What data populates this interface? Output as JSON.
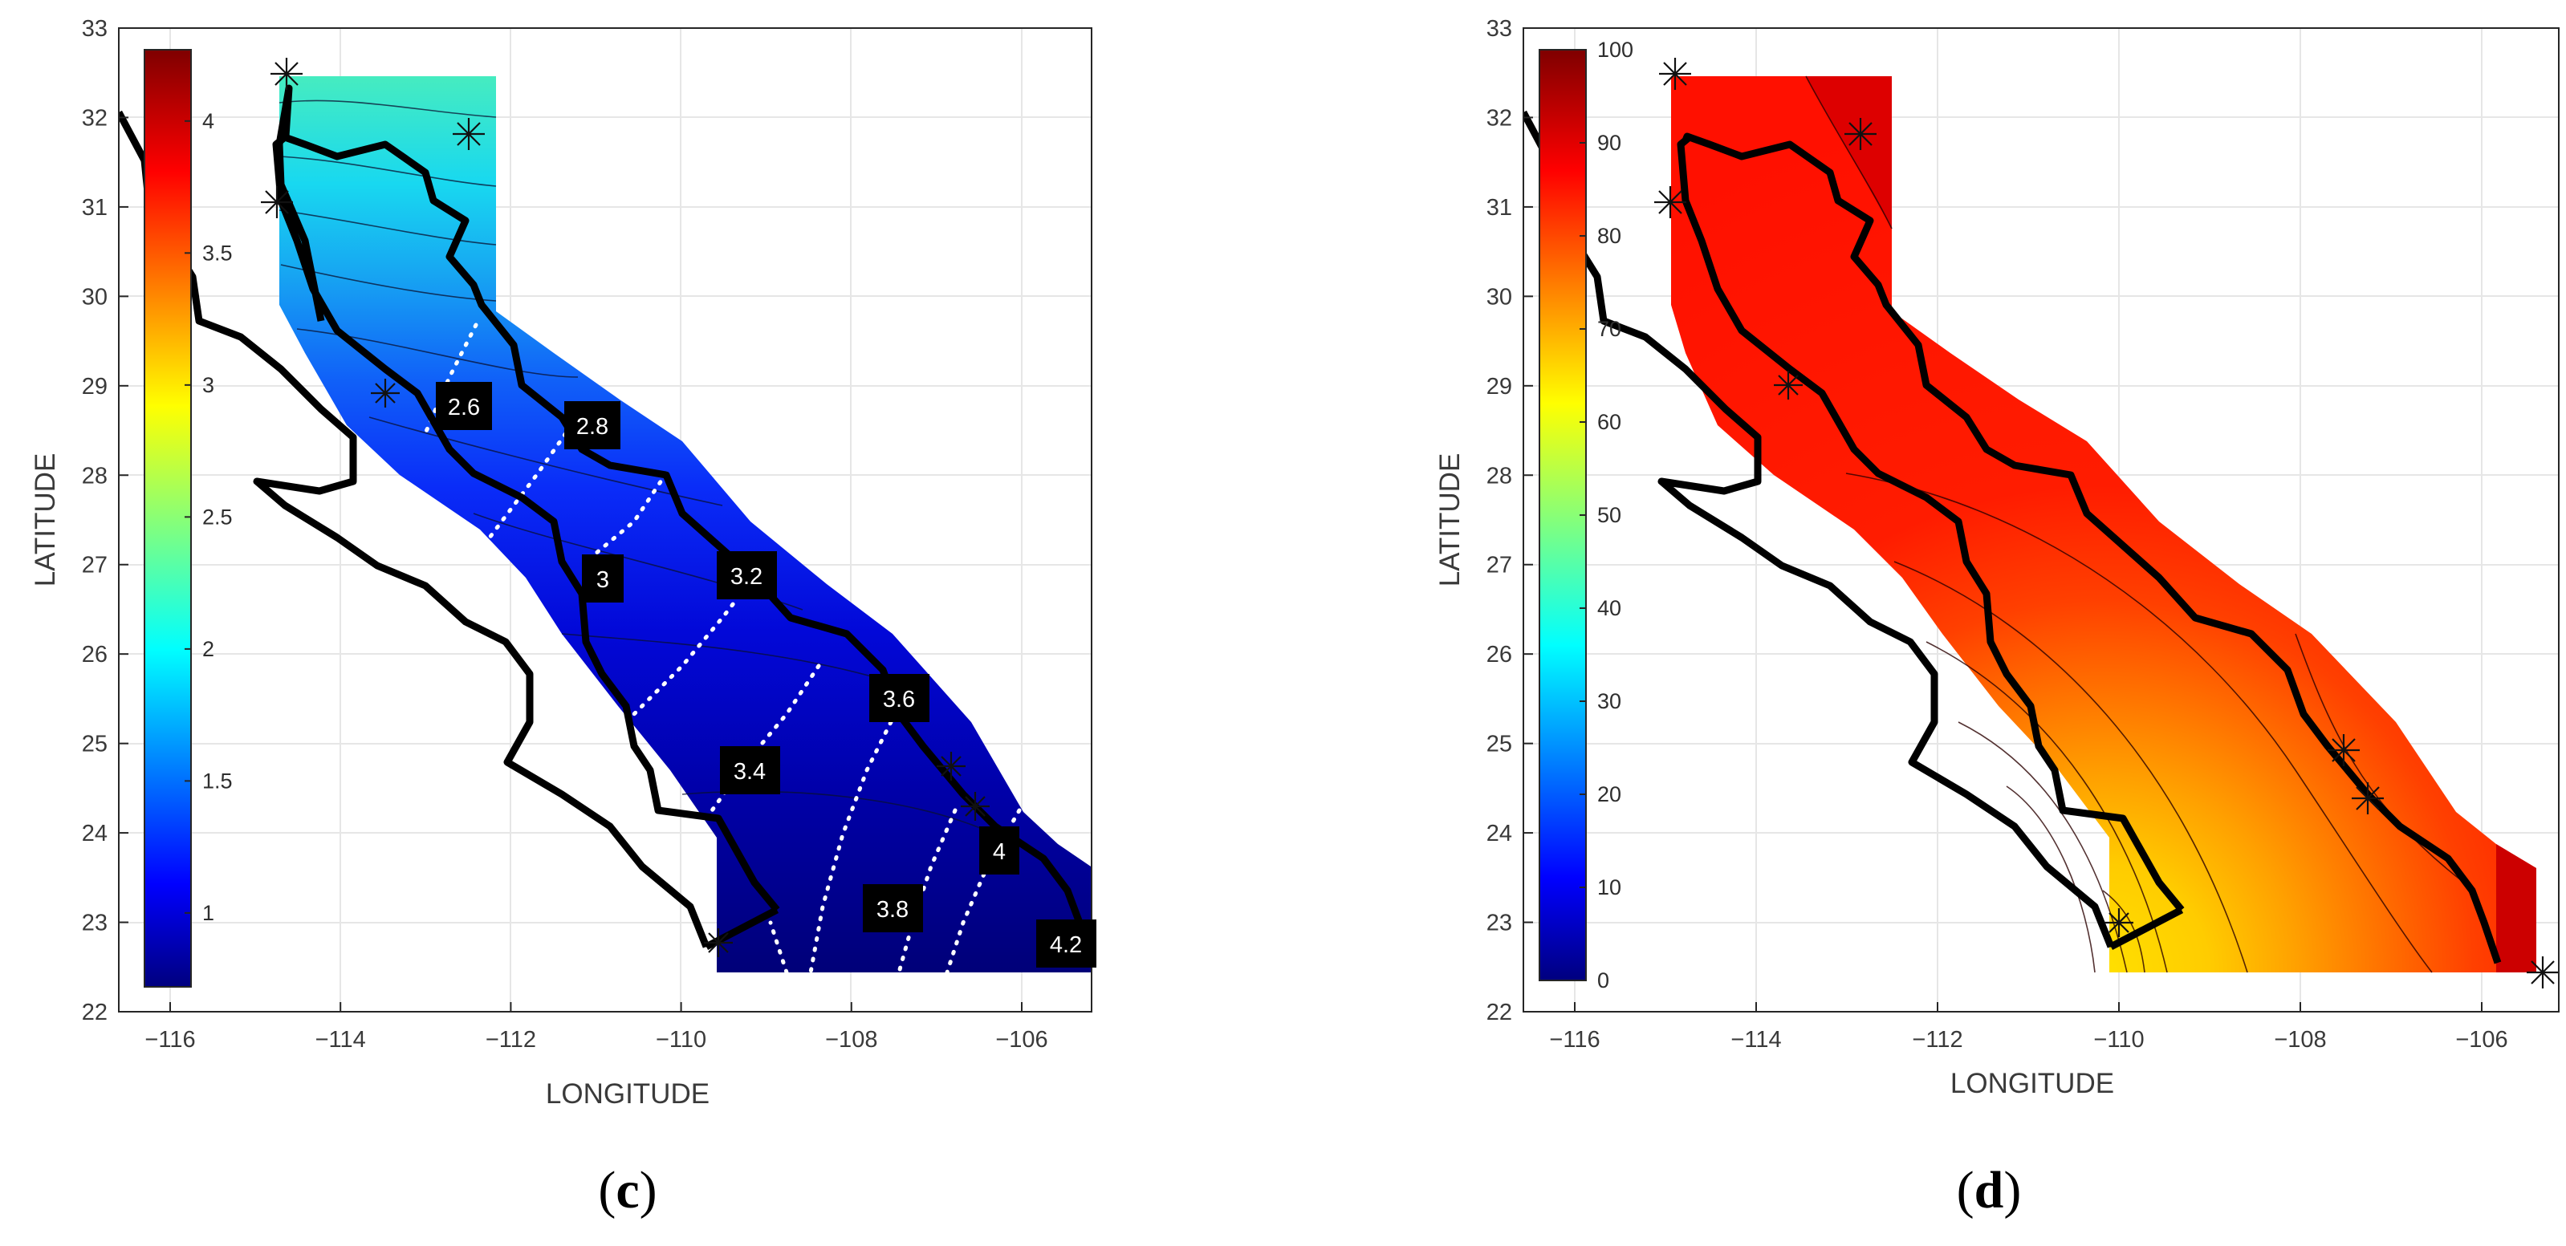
{
  "panels": [
    {
      "id": "c",
      "label_open": "(",
      "label_letter": "c",
      "label_close": ")",
      "xlabel": "LONGITUDE",
      "ylabel": "LATITUDE",
      "xticks": [
        -116,
        -114,
        -112,
        -110,
        -108,
        -106
      ],
      "yticks": [
        22,
        23,
        24,
        25,
        26,
        27,
        28,
        29,
        30,
        31,
        32,
        33
      ],
      "xlim": [
        -116.6,
        -105.2
      ],
      "ylim": [
        22,
        33
      ],
      "colorbar": {
        "ticks": [
          1,
          1.5,
          2,
          2.5,
          3,
          3.5,
          4
        ],
        "range": [
          0.72,
          4.27
        ],
        "colormap": "jet"
      },
      "contour_labels": [
        "2.6",
        "2.8",
        "3",
        "3.2",
        "3.4",
        "3.6",
        "3.8",
        "4",
        "4.2"
      ],
      "filled_region_dominant_colors": [
        "#3fe8c8",
        "#1db7f0",
        "#0a40ff",
        "#0000d8",
        "#00007a"
      ]
    },
    {
      "id": "d",
      "label_open": "(",
      "label_letter": "d",
      "label_close": ")",
      "xlabel": "LONGITUDE",
      "ylabel": "LATITUDE",
      "xticks": [
        -116,
        -114,
        -112,
        -110,
        -108,
        -106
      ],
      "yticks": [
        22,
        23,
        24,
        25,
        26,
        27,
        28,
        29,
        30,
        31,
        32,
        33
      ],
      "xlim": [
        -116.6,
        -105.2
      ],
      "ylim": [
        22,
        33
      ],
      "colorbar": {
        "ticks": [
          0,
          10,
          20,
          30,
          40,
          50,
          60,
          70,
          80,
          90,
          100
        ],
        "range": [
          0,
          100
        ],
        "colormap": "jet"
      },
      "contour_labels": [],
      "filled_region_dominant_colors": [
        "#ff1a00",
        "#ff6000",
        "#ffd000",
        "#cc0000"
      ]
    }
  ]
}
